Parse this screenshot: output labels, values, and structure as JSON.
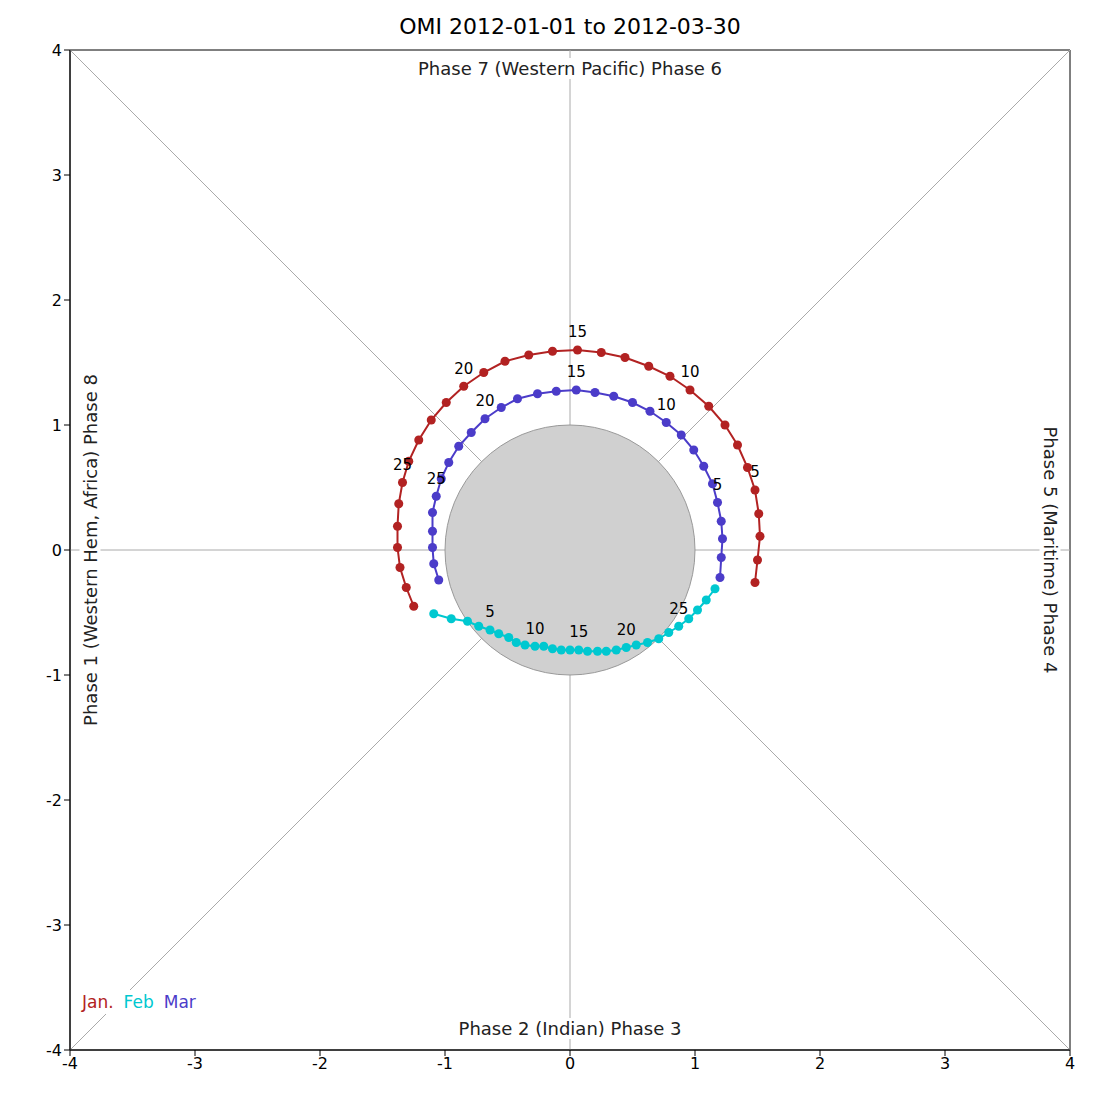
{
  "chart_data": {
    "type": "scatter",
    "title": "OMI 2012-01-01 to 2012-03-30",
    "xlim": [
      -4,
      4
    ],
    "ylim": [
      -4,
      4
    ],
    "xticks": [
      -4,
      -3,
      -2,
      -1,
      0,
      1,
      2,
      3,
      4
    ],
    "yticks": [
      -4,
      -3,
      -2,
      -1,
      0,
      1,
      2,
      3,
      4
    ],
    "grid": false,
    "legend": "lower left",
    "annotations": {
      "top": "Phase 7 (Western Pacific) Phase 6",
      "bottom": "Phase 2 (Indian) Phase 3",
      "left": "Phase 1 (Western Hem, Africa) Phase 8",
      "right": "Phase 5 (Maritime) Phase 4"
    },
    "labeled_days": [
      5,
      10,
      15,
      20,
      25
    ],
    "series": [
      {
        "name": "Jan.",
        "color": "#b22222",
        "marker": "o",
        "line_style": "solid",
        "x": [
          1.48,
          1.5,
          1.52,
          1.51,
          1.48,
          1.42,
          1.34,
          1.24,
          1.11,
          0.96,
          0.8,
          0.63,
          0.44,
          0.25,
          0.06,
          -0.14,
          -0.33,
          -0.52,
          -0.69,
          -0.85,
          -0.99,
          -1.11,
          -1.21,
          -1.29,
          -1.34,
          -1.37,
          -1.38,
          -1.38,
          -1.36,
          -1.31,
          -1.25
        ],
        "y": [
          -0.26,
          -0.08,
          0.11,
          0.29,
          0.48,
          0.66,
          0.84,
          1.0,
          1.15,
          1.28,
          1.39,
          1.47,
          1.54,
          1.58,
          1.6,
          1.59,
          1.56,
          1.51,
          1.42,
          1.31,
          1.18,
          1.04,
          0.88,
          0.71,
          0.54,
          0.37,
          0.19,
          0.02,
          -0.14,
          -0.3,
          -0.45
        ]
      },
      {
        "name": "Feb",
        "color": "#00c8d0",
        "marker": "o",
        "line_style": "solid",
        "x": [
          -1.09,
          -0.95,
          -0.82,
          -0.73,
          -0.64,
          -0.57,
          -0.49,
          -0.43,
          -0.36,
          -0.28,
          -0.21,
          -0.14,
          -0.07,
          0.0,
          0.07,
          0.14,
          0.22,
          0.29,
          0.37,
          0.45,
          0.53,
          0.62,
          0.71,
          0.79,
          0.87,
          0.95,
          1.02,
          1.09,
          1.16
        ],
        "y": [
          -0.51,
          -0.55,
          -0.57,
          -0.61,
          -0.64,
          -0.67,
          -0.7,
          -0.74,
          -0.76,
          -0.77,
          -0.77,
          -0.79,
          -0.8,
          -0.8,
          -0.8,
          -0.81,
          -0.81,
          -0.81,
          -0.8,
          -0.78,
          -0.76,
          -0.74,
          -0.71,
          -0.66,
          -0.61,
          -0.55,
          -0.48,
          -0.4,
          -0.31
        ]
      },
      {
        "name": "Mar",
        "color": "#4b3cc9",
        "marker": "o",
        "line_style": "solid",
        "x": [
          1.2,
          1.21,
          1.22,
          1.21,
          1.18,
          1.14,
          1.07,
          0.99,
          0.89,
          0.77,
          0.64,
          0.5,
          0.35,
          0.2,
          0.05,
          -0.11,
          -0.26,
          -0.42,
          -0.55,
          -0.68,
          -0.79,
          -0.89,
          -0.97,
          -1.03,
          -1.07,
          -1.1,
          -1.1,
          -1.1,
          -1.09,
          -1.05
        ],
        "y": [
          -0.22,
          -0.06,
          0.09,
          0.23,
          0.38,
          0.53,
          0.67,
          0.8,
          0.92,
          1.02,
          1.11,
          1.18,
          1.23,
          1.26,
          1.28,
          1.27,
          1.25,
          1.21,
          1.14,
          1.05,
          0.94,
          0.83,
          0.7,
          0.57,
          0.43,
          0.3,
          0.15,
          0.02,
          -0.11,
          -0.24
        ]
      }
    ]
  }
}
